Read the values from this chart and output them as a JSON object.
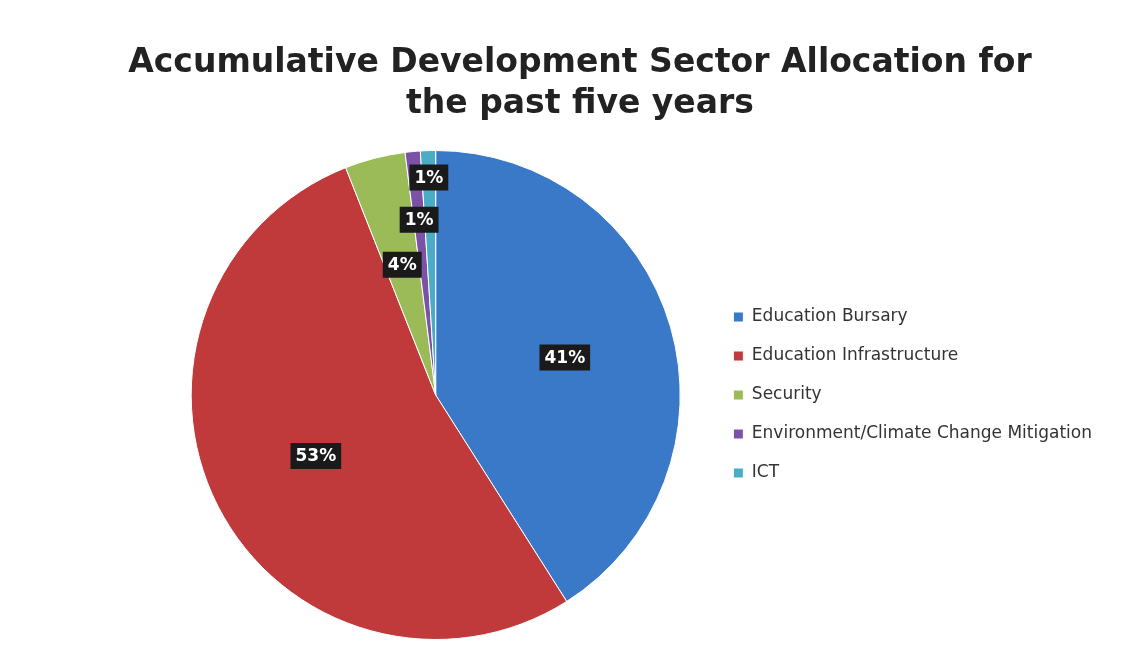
{
  "chart_data": {
    "type": "pie",
    "title": "Accumulative Development Sector Allocation for the past five years",
    "categories": [
      "Education Bursary",
      "Education Infrastructure",
      "Security",
      "Environment/Climate Change Mitigation",
      "ICT"
    ],
    "values": [
      41,
      53,
      4,
      1,
      1
    ],
    "value_labels": [
      "41%",
      "53%",
      "4%",
      "1%",
      "1%"
    ],
    "colors": [
      "#3a78c8",
      "#c0393b",
      "#9bbb59",
      "#7b52a6",
      "#4bacc6"
    ],
    "legend": "right"
  }
}
